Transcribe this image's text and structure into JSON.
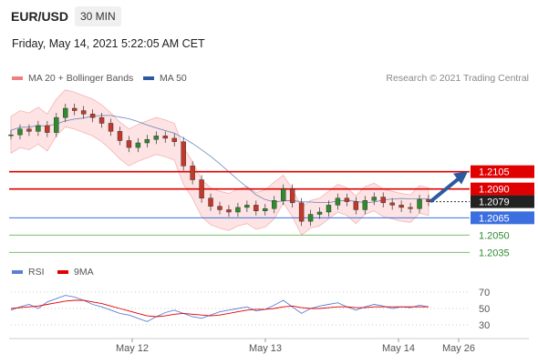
{
  "header": {
    "symbol": "EUR/USD",
    "timeframe": "30 MIN"
  },
  "timestamp": "Friday, May 14, 2021 5:22:05 AM CET",
  "legend": {
    "ma20_label": "MA 20 + Bollinger Bands",
    "ma20_color": "#f08080",
    "ma50_label": "MA 50",
    "ma50_color": "#2c5aa0"
  },
  "credit": "Research © 2021 Trading Central",
  "rsi_legend": {
    "rsi_label": "RSI",
    "rsi_color": "#5b7fd6",
    "ma_label": "9MA",
    "ma_color": "#e00000"
  },
  "chart_data": [
    {
      "type": "candlestick",
      "series_name": "EUR/USD",
      "current_price": "1.2079",
      "levels": [
        {
          "value": "1.2105",
          "kind": "resistance",
          "color": "#e00000"
        },
        {
          "value": "1.2090",
          "kind": "resistance",
          "color": "#e00000"
        },
        {
          "value": "1.2065",
          "kind": "support",
          "color": "#3b6fe0"
        },
        {
          "value": "1.2050",
          "kind": "support",
          "color": "#7cbf6e"
        },
        {
          "value": "1.2035",
          "kind": "support",
          "color": "#7cbf6e"
        }
      ],
      "close_path": [
        1.2137,
        1.2142,
        1.214,
        1.2145,
        1.2139,
        1.2152,
        1.216,
        1.2158,
        1.2155,
        1.2152,
        1.2147,
        1.214,
        1.2132,
        1.2126,
        1.213,
        1.2133,
        1.2136,
        1.2134,
        1.2131,
        1.211,
        1.2098,
        1.2082,
        1.2075,
        1.2072,
        1.207,
        1.2074,
        1.2076,
        1.2071,
        1.2073,
        1.208,
        1.209,
        1.2078,
        1.2062,
        1.2068,
        1.207,
        1.2076,
        1.2082,
        1.2079,
        1.2072,
        1.208,
        1.2083,
        1.2078,
        1.2076,
        1.2074,
        1.2073,
        1.2081,
        1.2079
      ],
      "forecast_arrow": {
        "from": 1.2079,
        "to": 1.2105
      }
    },
    {
      "type": "line",
      "series_name": "RSI",
      "y_ticks": [
        "70",
        "50",
        "30"
      ],
      "ylim": [
        20,
        80
      ],
      "rsi_values": [
        48,
        52,
        55,
        50,
        58,
        62,
        66,
        64,
        60,
        55,
        52,
        48,
        44,
        42,
        38,
        34,
        40,
        45,
        48,
        44,
        40,
        38,
        42,
        46,
        48,
        50,
        52,
        47,
        49,
        54,
        60,
        52,
        44,
        50,
        53,
        55,
        57,
        52,
        48,
        52,
        55,
        53,
        50,
        52,
        51,
        54,
        52
      ],
      "ma_values": [
        50,
        51,
        52,
        53,
        55,
        57,
        59,
        60,
        60,
        58,
        56,
        53,
        50,
        47,
        44,
        41,
        40,
        41,
        43,
        44,
        43,
        42,
        41,
        42,
        44,
        46,
        48,
        49,
        49,
        50,
        52,
        53,
        51,
        50,
        50,
        51,
        52,
        52,
        51,
        51,
        52,
        52,
        52,
        52,
        52,
        52,
        52
      ]
    }
  ],
  "x_labels": [
    "May 12",
    "May 13",
    "May 14",
    "May 26"
  ]
}
